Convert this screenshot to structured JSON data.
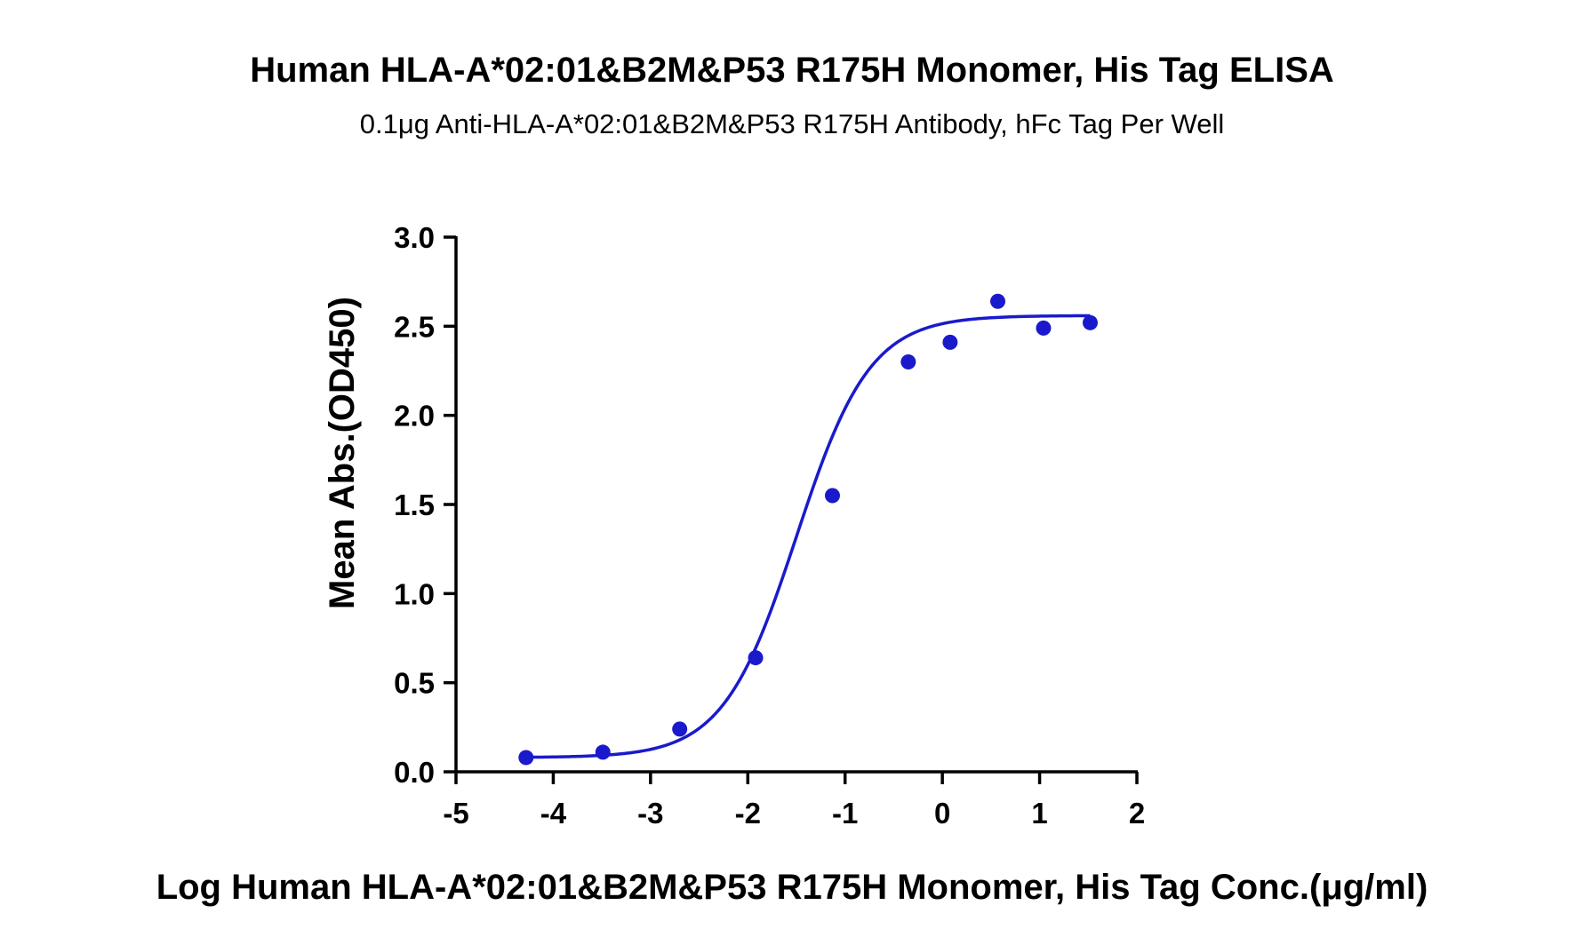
{
  "chart_data": {
    "type": "scatter",
    "title": "Human HLA-A*02:01&B2M&P53 R175H Monomer, His Tag ELISA",
    "subtitle": "0.1μg Anti-HLA-A*02:01&B2M&P53 R175H Antibody, hFc Tag Per Well",
    "xlabel": "Log Human HLA-A*02:01&B2M&P53 R175H Monomer, His Tag Conc.(μg/ml)",
    "ylabel": "Mean Abs.(OD450)",
    "xlim": [
      -5,
      2
    ],
    "ylim": [
      0,
      3.0
    ],
    "x_ticks": [
      "-5",
      "-4",
      "-3",
      "-2",
      "-1",
      "0",
      "1",
      "2"
    ],
    "y_ticks": [
      "0.0",
      "0.5",
      "1.0",
      "1.5",
      "2.0",
      "2.5",
      "3.0"
    ],
    "grid": false,
    "colors": {
      "series": "#1a1acc",
      "axis": "#000000"
    },
    "points": {
      "x": [
        -4.28,
        -3.49,
        -2.7,
        -1.92,
        -1.13,
        -0.35,
        0.08,
        0.57,
        1.04,
        1.52
      ],
      "y": [
        0.08,
        0.11,
        0.24,
        0.64,
        1.55,
        2.3,
        2.41,
        2.64,
        2.49,
        2.52
      ]
    },
    "fit": {
      "model": "4PL",
      "bottom": 0.08,
      "top": 2.56,
      "log_ec50": -1.5,
      "hill_slope": 1.15
    }
  }
}
